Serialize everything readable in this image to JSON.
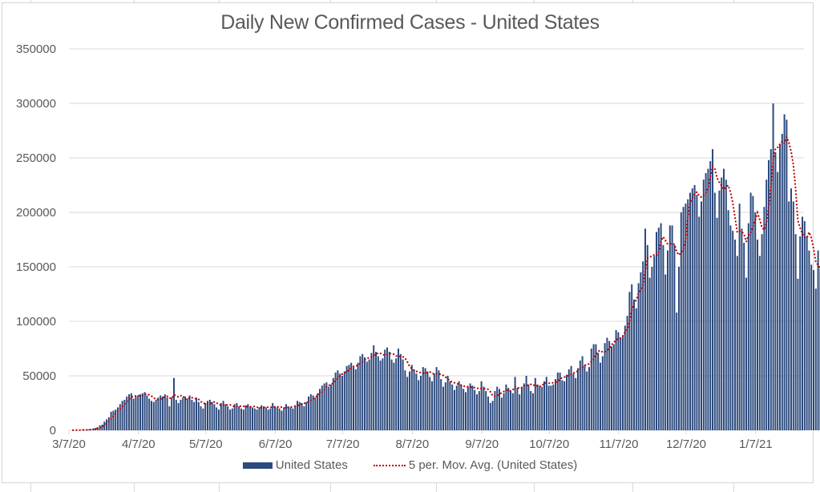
{
  "chart_data": {
    "type": "bar",
    "title": "Daily New Confirmed Cases - United States",
    "xlabel": "",
    "ylabel": "",
    "ylim": [
      0,
      350000
    ],
    "y_ticks": [
      "0",
      "50000",
      "100000",
      "150000",
      "200000",
      "250000",
      "300000",
      "350000"
    ],
    "x_ticks": [
      "3/7/20",
      "4/7/20",
      "5/7/20",
      "6/7/20",
      "7/7/20",
      "8/7/20",
      "9/7/20",
      "10/7/20",
      "11/7/20",
      "12/7/20",
      "1/7/21"
    ],
    "x_start": "3/7/20",
    "x_end": "1/28/21",
    "grid": "horizontal",
    "legend_position": "bottom",
    "colors": {
      "bars": "#2c4a7e",
      "moving_average": "#c00000",
      "gridline": "#d9d9d9",
      "text": "#595959"
    },
    "series": [
      {
        "name": "United States",
        "type": "bar",
        "values": [
          100,
          100,
          200,
          300,
          400,
          500,
          600,
          800,
          1000,
          1600,
          2100,
          2800,
          4500,
          5200,
          8000,
          10000,
          12000,
          17000,
          18000,
          19000,
          21000,
          24000,
          27000,
          28000,
          31000,
          33000,
          34000,
          29000,
          31000,
          32000,
          33000,
          34000,
          35000,
          32000,
          29000,
          27000,
          26000,
          28000,
          30000,
          32000,
          31000,
          33000,
          30000,
          22000,
          30000,
          48000,
          28000,
          25000,
          28000,
          30000,
          31000,
          29000,
          32000,
          28000,
          26000,
          30000,
          26000,
          22000,
          20000,
          25000,
          27000,
          28000,
          26000,
          24000,
          21000,
          19000,
          25000,
          27000,
          24000,
          22000,
          19000,
          20000,
          24000,
          25000,
          22000,
          20000,
          19000,
          23000,
          24000,
          22000,
          21000,
          20000,
          19000,
          21000,
          23000,
          22000,
          21000,
          19000,
          20000,
          25000,
          22000,
          21000,
          20000,
          18000,
          21000,
          24000,
          22000,
          21000,
          20000,
          23000,
          27000,
          26000,
          25000,
          22000,
          26000,
          31000,
          33000,
          32000,
          30000,
          34000,
          38000,
          41000,
          43000,
          44000,
          40000,
          42000,
          48000,
          53000,
          55000,
          52000,
          50000,
          54000,
          59000,
          60000,
          62000,
          58000,
          56000,
          62000,
          68000,
          70000,
          67000,
          63000,
          65000,
          71000,
          78000,
          72000,
          68000,
          64000,
          66000,
          74000,
          76000,
          72000,
          65000,
          62000,
          66000,
          75000,
          70000,
          65000,
          55000,
          49000,
          54000,
          60000,
          56000,
          52000,
          46000,
          50000,
          58000,
          57000,
          54000,
          49000,
          45000,
          52000,
          58000,
          55000,
          47000,
          40000,
          44000,
          50000,
          45000,
          42000,
          37000,
          41000,
          45000,
          42000,
          38000,
          35000,
          40000,
          43000,
          41000,
          37000,
          33000,
          36000,
          45000,
          40000,
          36000,
          31000,
          25000,
          27000,
          36000,
          40000,
          38000,
          30000,
          34000,
          42000,
          39000,
          36000,
          34000,
          49000,
          39000,
          33000,
          40000,
          43000,
          50000,
          42000,
          36000,
          34000,
          48000,
          42000,
          41000,
          40000,
          45000,
          49000,
          41000,
          41000,
          42000,
          47000,
          53000,
          53000,
          46000,
          45000,
          51000,
          56000,
          59000,
          52000,
          48000,
          57000,
          64000,
          68000,
          60000,
          54000,
          58000,
          75000,
          79000,
          79000,
          71000,
          62000,
          68000,
          80000,
          85000,
          82000,
          77000,
          79000,
          92000,
          90000,
          85000,
          87000,
          96000,
          105000,
          127000,
          134000,
          120000,
          112000,
          135000,
          145000,
          155000,
          185000,
          170000,
          140000,
          150000,
          160000,
          182000,
          186000,
          190000,
          170000,
          143000,
          165000,
          188000,
          188000,
          170000,
          108000,
          150000,
          200000,
          205000,
          208000,
          212000,
          218000,
          222000,
          225000,
          216000,
          196000,
          210000,
          230000,
          236000,
          240000,
          247000,
          258000,
          218000,
          195000,
          220000,
          232000,
          240000,
          230000,
          202000,
          188000,
          183000,
          175000,
          160000,
          208000,
          185000,
          172000,
          140000,
          190000,
          218000,
          215000,
          200000,
          175000,
          160000,
          180000,
          205000,
          230000,
          248000,
          258000,
          300000,
          255000,
          237000,
          262000,
          272000,
          290000,
          285000,
          210000,
          222000,
          210000,
          180000,
          139000,
          178000,
          196000,
          192000,
          178000,
          165000,
          152000,
          147000,
          130000,
          165000,
          148000
        ]
      },
      {
        "name": "5 per. Mov. Avg. (United States)",
        "type": "line",
        "period": 5
      }
    ]
  },
  "legend": {
    "bar_label": "United States",
    "line_label": "5 per. Mov. Avg. (United States)"
  }
}
